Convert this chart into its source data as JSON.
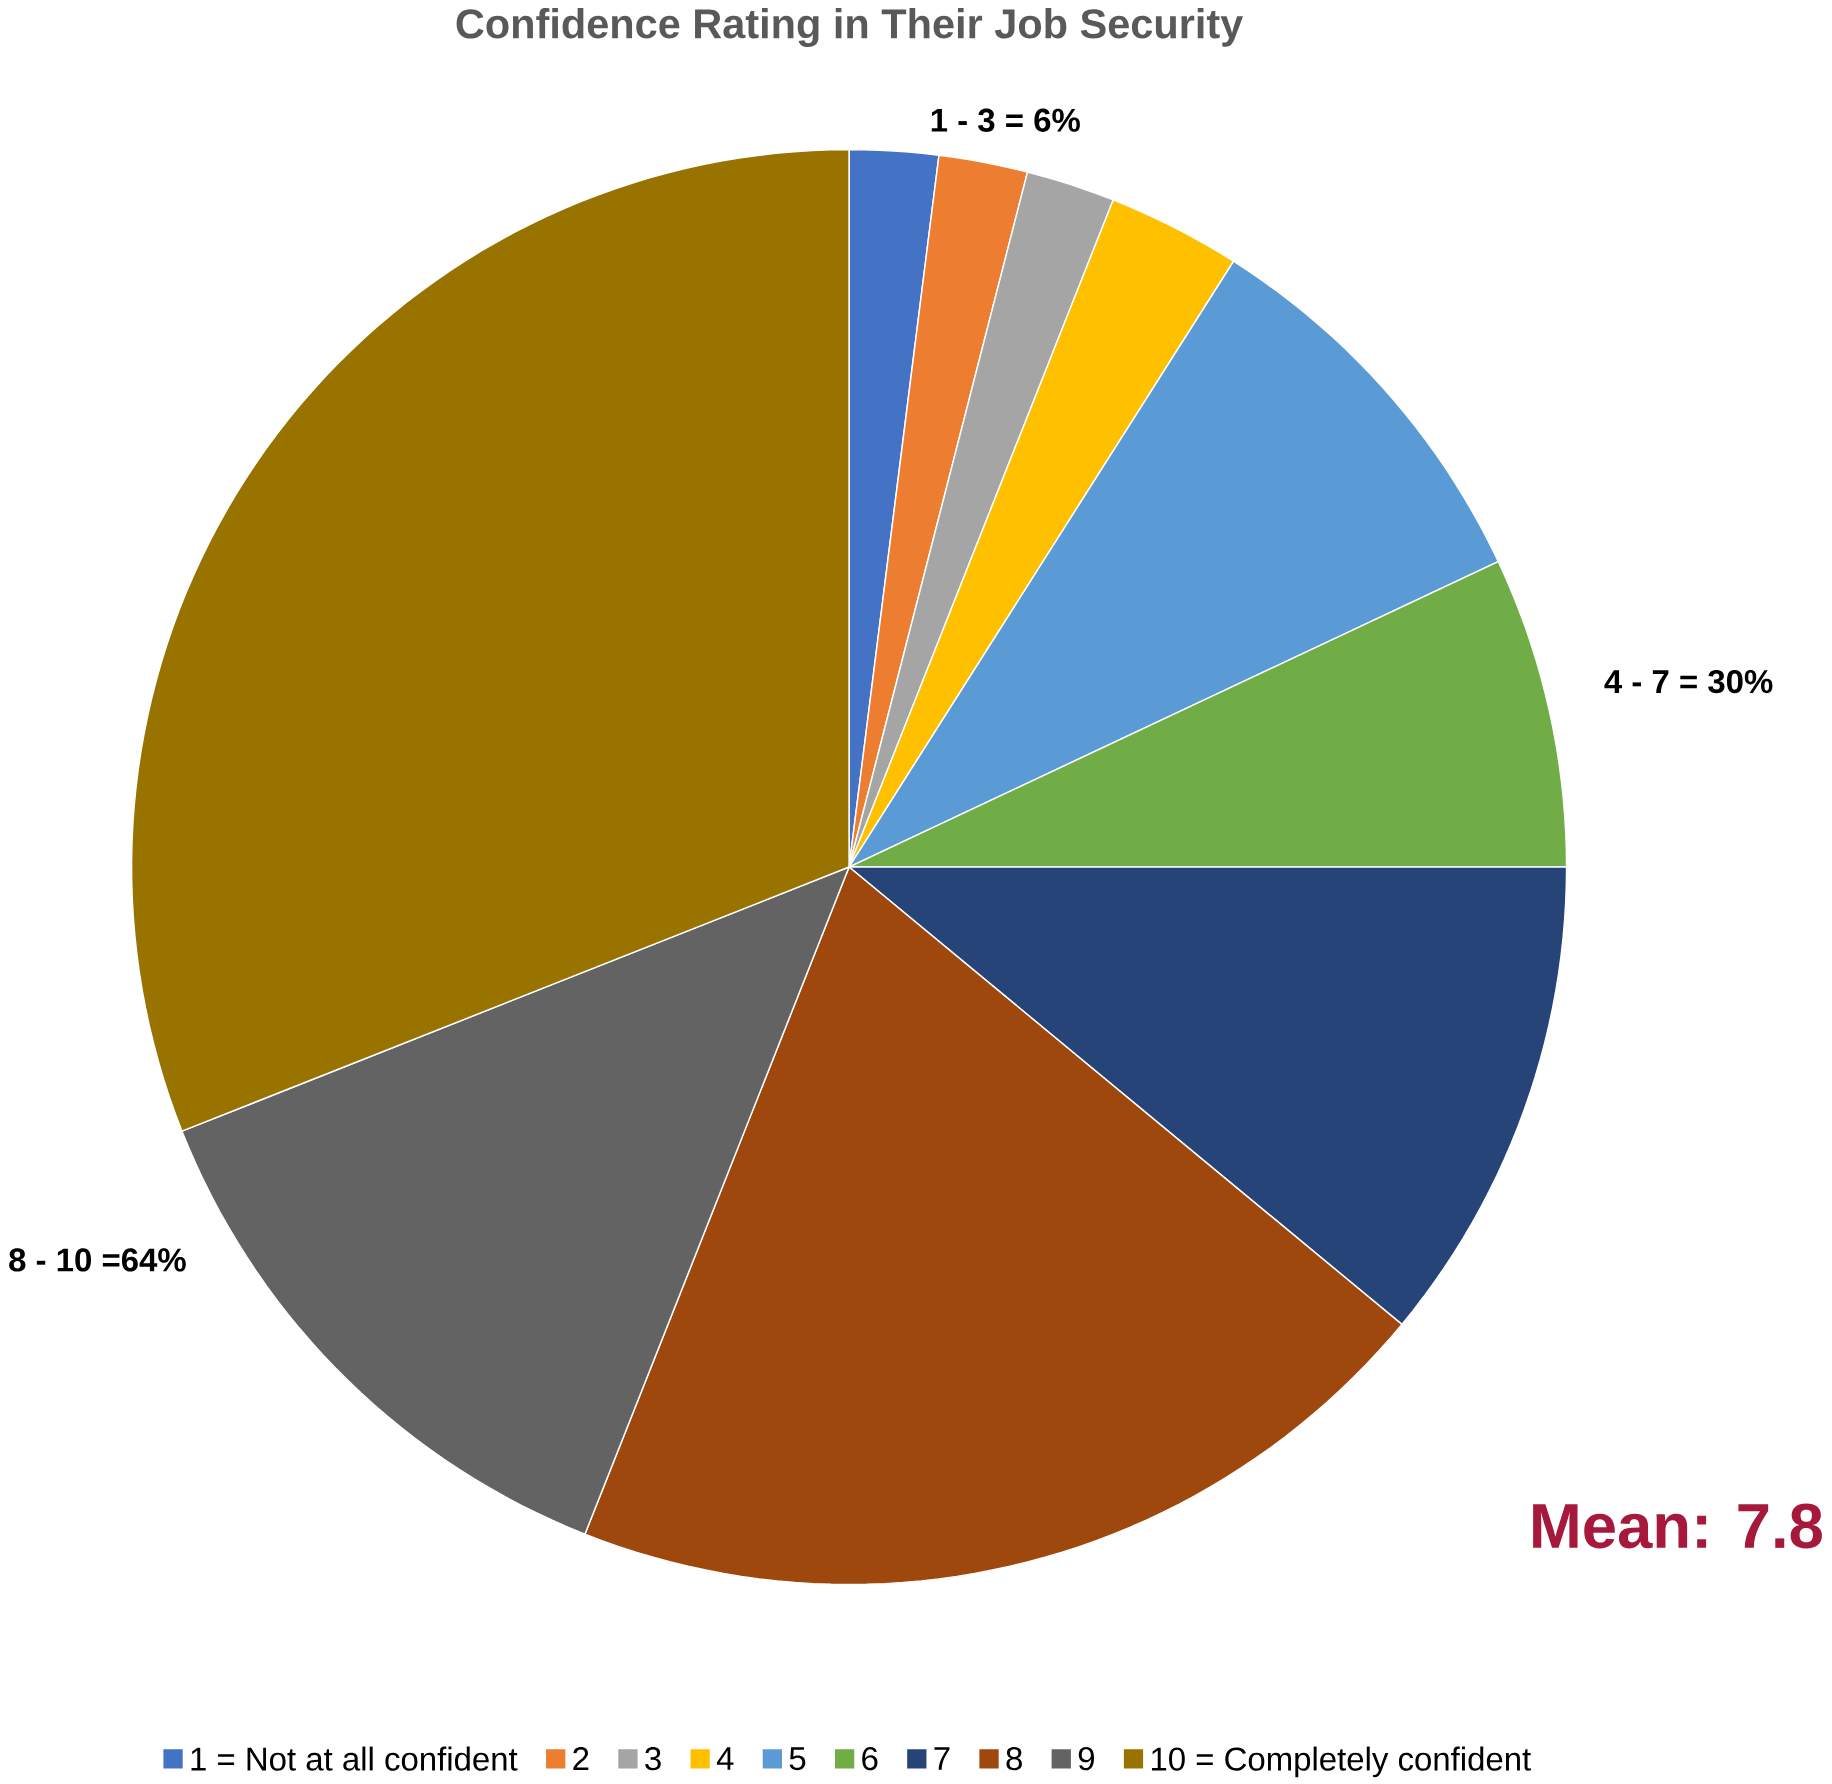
{
  "chart_data": {
    "type": "pie",
    "title": "Confidence Rating in Their Job Security",
    "categories": [
      "1 = Not at all confident",
      "2",
      "3",
      "4",
      "5",
      "6",
      "7",
      "8",
      "9",
      "10 = Completely confident"
    ],
    "values": [
      2,
      2,
      2,
      3,
      9,
      7,
      11,
      20,
      13,
      31
    ],
    "colors": [
      "#4472c4",
      "#ed7d31",
      "#a5a5a5",
      "#ffc000",
      "#5b9bd5",
      "#70ad47",
      "#264478",
      "#9e480e",
      "#636363",
      "#997300"
    ],
    "legend": "bottom",
    "annotations": [
      "1 - 3 = 6%",
      "4 - 7 = 30%",
      "8 - 10 =64%",
      "Mean: 7.8"
    ]
  }
}
